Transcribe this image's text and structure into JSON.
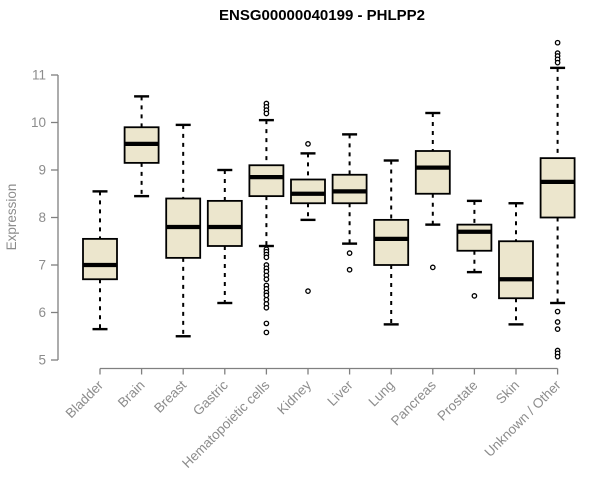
{
  "chart_data": {
    "type": "boxplot",
    "title": "ENSG00000040199 - PHLPP2",
    "ylabel": "Expression",
    "xlabel": "",
    "ylim": [
      5,
      11
    ],
    "yticks": [
      5,
      6,
      7,
      8,
      9,
      10,
      11
    ],
    "grid": false,
    "legend": "none",
    "categories": [
      "Bladder",
      "Brain",
      "Breast",
      "Gastric",
      "Hematopoietic cells",
      "Kidney",
      "Liver",
      "Lung",
      "Pancreas",
      "Prostate",
      "Skin",
      "Unknown / Other"
    ],
    "boxes": [
      {
        "label": "Bladder",
        "whisker_low": 5.65,
        "q1": 6.7,
        "median": 7.0,
        "q3": 7.55,
        "whisker_high": 8.55,
        "outliers": []
      },
      {
        "label": "Brain",
        "whisker_low": 8.45,
        "q1": 9.15,
        "median": 9.55,
        "q3": 9.9,
        "whisker_high": 10.55,
        "outliers": []
      },
      {
        "label": "Breast",
        "whisker_low": 5.5,
        "q1": 7.15,
        "median": 7.8,
        "q3": 8.4,
        "whisker_high": 9.95,
        "outliers": []
      },
      {
        "label": "Gastric",
        "whisker_low": 6.2,
        "q1": 7.4,
        "median": 7.8,
        "q3": 8.35,
        "whisker_high": 9.0,
        "outliers": []
      },
      {
        "label": "Hematopoietic cells",
        "whisker_low": 7.4,
        "q1": 8.45,
        "median": 8.85,
        "q3": 9.1,
        "whisker_high": 10.05,
        "outliers": [
          10.4,
          10.33,
          10.26,
          10.19,
          7.33,
          7.28,
          7.22,
          7.16,
          7.0,
          6.93,
          6.86,
          6.78,
          6.7,
          6.57,
          6.5,
          6.42,
          6.36,
          6.27,
          6.18,
          6.1,
          5.77,
          5.58
        ]
      },
      {
        "label": "Kidney",
        "whisker_low": 7.95,
        "q1": 8.3,
        "median": 8.5,
        "q3": 8.8,
        "whisker_high": 9.35,
        "outliers": [
          9.55,
          6.45
        ]
      },
      {
        "label": "Liver",
        "whisker_low": 7.45,
        "q1": 8.3,
        "median": 8.55,
        "q3": 8.9,
        "whisker_high": 9.75,
        "outliers": [
          7.25,
          6.9
        ]
      },
      {
        "label": "Lung",
        "whisker_low": 5.75,
        "q1": 7.0,
        "median": 7.55,
        "q3": 7.95,
        "whisker_high": 9.2,
        "outliers": []
      },
      {
        "label": "Pancreas",
        "whisker_low": 7.85,
        "q1": 8.5,
        "median": 9.05,
        "q3": 9.4,
        "whisker_high": 10.2,
        "outliers": [
          6.95
        ]
      },
      {
        "label": "Prostate",
        "whisker_low": 6.85,
        "q1": 7.3,
        "median": 7.7,
        "q3": 7.85,
        "whisker_high": 8.35,
        "outliers": [
          6.35
        ]
      },
      {
        "label": "Skin",
        "whisker_low": 5.75,
        "q1": 6.3,
        "median": 6.7,
        "q3": 7.5,
        "whisker_high": 8.3,
        "outliers": []
      },
      {
        "label": "Unknown / Other",
        "whisker_low": 6.2,
        "q1": 8.0,
        "median": 8.75,
        "q3": 9.25,
        "whisker_high": 11.15,
        "outliers": [
          11.68,
          11.46,
          11.4,
          11.33,
          11.26,
          6.02,
          5.8,
          5.65,
          5.2,
          5.14,
          5.07
        ]
      }
    ]
  },
  "colors": {
    "box_fill": "#ECE6CD",
    "box_stroke": "#000000",
    "median": "#000000",
    "whisker": "#000000",
    "outlier_stroke": "#000000",
    "outlier_fill": "#ffffff",
    "axis_line": "#808080",
    "tick_text": "#8c8c8c",
    "title_text": "#000000",
    "background": "#ffffff"
  }
}
